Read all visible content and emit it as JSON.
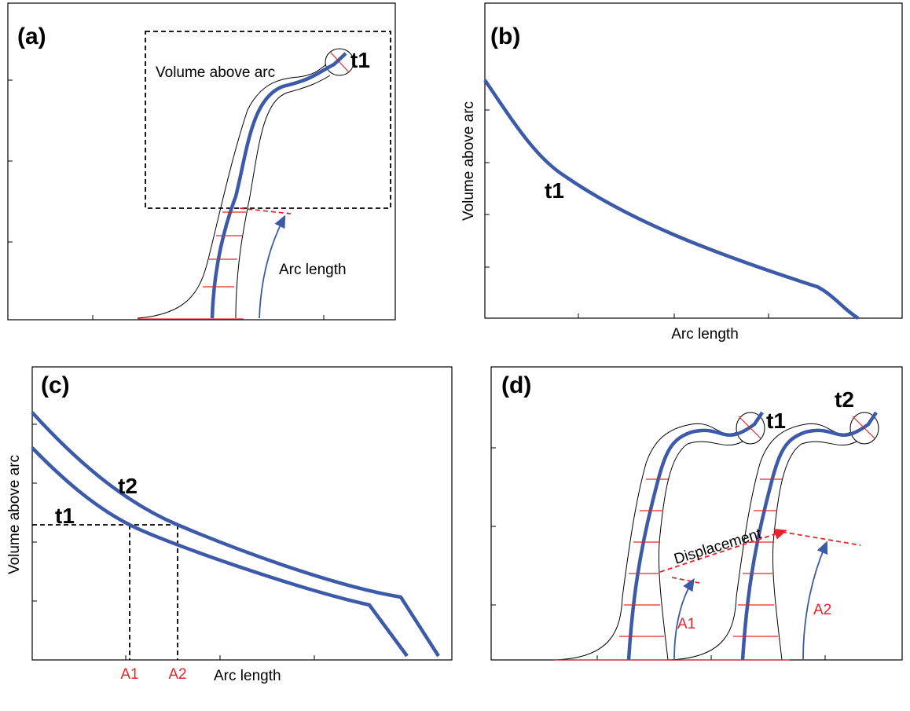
{
  "panels": [
    {
      "label": "(a)",
      "box_text": "Volume above arc",
      "curve_label": "t1",
      "arrow_label": "Arc length"
    },
    {
      "label": "(b)",
      "y_label": "Volume above arc",
      "x_label": "Arc length",
      "curve_label": "t1"
    },
    {
      "label": "(c)",
      "y_label": "Volume above arc",
      "x_label": "Arc length",
      "curve_labels": [
        "t1",
        "t2"
      ],
      "markers": [
        "A1",
        "A2"
      ]
    },
    {
      "label": "(d)",
      "plant_labels": [
        "t1",
        "t2"
      ],
      "displacement": "Displacement",
      "markers": [
        "A1",
        "A2"
      ]
    }
  ]
}
